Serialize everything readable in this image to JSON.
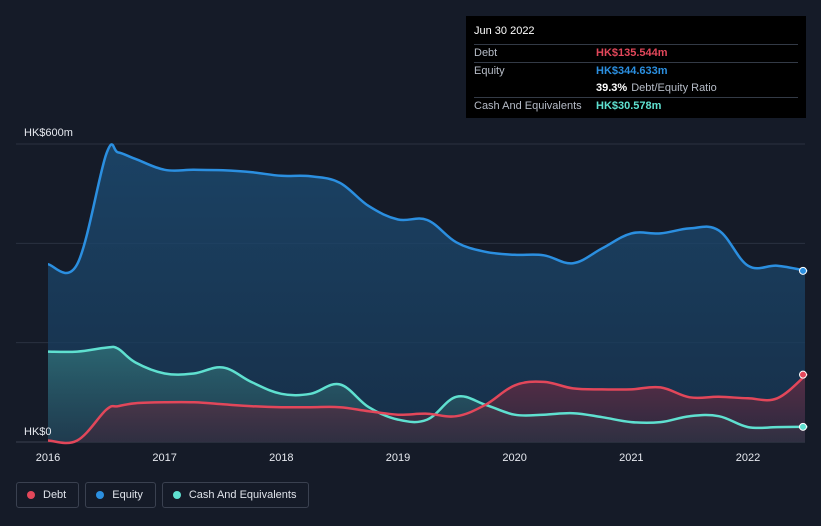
{
  "tooltip": {
    "date": "Jun 30 2022",
    "debt_label": "Debt",
    "debt_value": "HK$135.544m",
    "equity_label": "Equity",
    "equity_value": "HK$344.633m",
    "ratio_value": "39.3%",
    "ratio_label": "Debt/Equity Ratio",
    "cash_label": "Cash And Equivalents",
    "cash_value": "HK$30.578m"
  },
  "legend": {
    "debt": "Debt",
    "equity": "Equity",
    "cash": "Cash And Equivalents"
  },
  "colors": {
    "debt": "#e2475a",
    "equity": "#2b8fe0",
    "cash": "#5fe0d0",
    "background": "#151b28"
  },
  "chart_data": {
    "type": "area",
    "title": "",
    "xlabel": "",
    "ylabel": "",
    "ylim": [
      0,
      600
    ],
    "y_unit": "HK$ millions",
    "y_tick_labels": [
      "HK$600m",
      "HK$0"
    ],
    "x_ticks": [
      2016,
      2017,
      2018,
      2019,
      2020,
      2021,
      2022
    ],
    "x_tick_labels": [
      "2016",
      "2017",
      "2018",
      "2019",
      "2020",
      "2021",
      "2022"
    ],
    "x_range": [
      2015.75,
      2022.75
    ],
    "grid": true,
    "legend_position": "bottom-left",
    "series": [
      {
        "name": "Equity",
        "x": [
          2016.0,
          2016.25,
          2016.5,
          2016.6,
          2016.75,
          2017.0,
          2017.25,
          2017.5,
          2017.75,
          2018.0,
          2018.25,
          2018.5,
          2018.75,
          2019.0,
          2019.25,
          2019.5,
          2019.75,
          2020.0,
          2020.25,
          2020.5,
          2020.75,
          2021.0,
          2021.25,
          2021.5,
          2021.75,
          2022.0,
          2022.25,
          2022.5
        ],
        "values": [
          358,
          358,
          580,
          583,
          570,
          548,
          548,
          547,
          543,
          536,
          535,
          522,
          475,
          448,
          447,
          402,
          383,
          377,
          376,
          360,
          390,
          420,
          420,
          430,
          426,
          355,
          355,
          344.633
        ]
      },
      {
        "name": "Cash And Equivalents",
        "x": [
          2016.0,
          2016.25,
          2016.5,
          2016.6,
          2016.75,
          2017.0,
          2017.25,
          2017.5,
          2017.75,
          2018.0,
          2018.25,
          2018.5,
          2018.75,
          2019.0,
          2019.25,
          2019.5,
          2019.75,
          2020.0,
          2020.25,
          2020.5,
          2020.75,
          2021.0,
          2021.25,
          2021.5,
          2021.75,
          2022.0,
          2022.25,
          2022.5
        ],
        "values": [
          182,
          182,
          190,
          188,
          160,
          138,
          138,
          150,
          120,
          97,
          97,
          116,
          70,
          45,
          45,
          91,
          75,
          55,
          55,
          58,
          50,
          40,
          40,
          52,
          52,
          30,
          30,
          30.578
        ]
      },
      {
        "name": "Debt",
        "x": [
          2016.0,
          2016.25,
          2016.5,
          2016.6,
          2016.75,
          2017.0,
          2017.25,
          2017.5,
          2017.75,
          2018.0,
          2018.25,
          2018.5,
          2018.75,
          2019.0,
          2019.25,
          2019.5,
          2019.75,
          2020.0,
          2020.25,
          2020.5,
          2020.75,
          2021.0,
          2021.25,
          2021.5,
          2021.75,
          2022.0,
          2022.25,
          2022.5
        ],
        "values": [
          3,
          3,
          65,
          72,
          78,
          80,
          80,
          76,
          72,
          70,
          70,
          70,
          62,
          55,
          57,
          52,
          75,
          114,
          121,
          108,
          106,
          106,
          110,
          90,
          91,
          88,
          88,
          135.544
        ]
      }
    ]
  }
}
